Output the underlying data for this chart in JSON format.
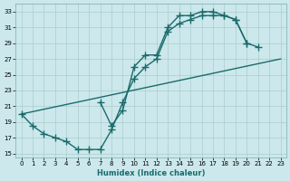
{
  "xlabel": "Humidex (Indice chaleur)",
  "bg_color": "#cce8ec",
  "grid_color": "#aacccc",
  "line_color": "#1a6b6b",
  "linewidth": 1.0,
  "markersize": 4,
  "xlim": [
    -0.5,
    23.5
  ],
  "ylim": [
    14.5,
    34.0
  ],
  "xticks": [
    0,
    1,
    2,
    3,
    4,
    5,
    6,
    7,
    8,
    9,
    10,
    11,
    12,
    13,
    14,
    15,
    16,
    17,
    18,
    19,
    20,
    21,
    22,
    23
  ],
  "yticks": [
    15,
    17,
    19,
    21,
    23,
    25,
    27,
    29,
    31,
    33
  ],
  "line1_x": [
    0,
    1,
    2,
    3,
    4,
    5,
    6,
    7,
    8,
    9,
    10,
    11,
    12,
    13,
    14,
    15,
    16,
    17,
    18,
    19,
    20
  ],
  "line1_y": [
    20.0,
    18.5,
    17.5,
    17.0,
    16.5,
    15.5,
    15.5,
    15.5,
    18.0,
    21.5,
    24.5,
    26.0,
    27.0,
    30.5,
    31.5,
    32.0,
    32.5,
    32.5,
    32.5,
    32.0,
    29.0
  ],
  "line2_x": [
    7,
    8,
    9,
    10,
    11,
    12,
    13,
    14,
    15,
    16,
    17,
    18,
    19,
    20,
    21,
    22,
    23
  ],
  "line2_y": [
    21.5,
    18.5,
    20.5,
    26.0,
    27.5,
    27.5,
    31.0,
    32.5,
    32.5,
    33.0,
    33.0,
    32.5,
    32.0,
    29.0,
    28.5,
    null,
    null
  ],
  "line3_x": [
    0,
    23
  ],
  "line3_y": [
    20.0,
    27.0
  ]
}
